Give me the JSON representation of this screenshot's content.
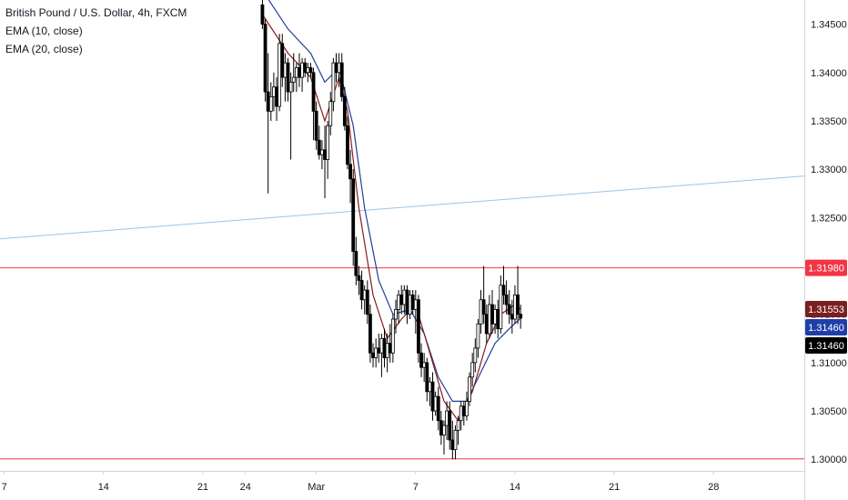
{
  "legend": {
    "title": "British Pound / U.S. Dollar, 4h, FXCM",
    "ema10": "EMA (10, close)",
    "ema20": "EMA (20, close)"
  },
  "colors": {
    "up": "#ffffff",
    "down": "#000000",
    "wick": "#000000",
    "ema10": "#8b1a1a",
    "ema20": "#1f3f9a",
    "trendline": "#9ec3ea",
    "hline": "#f23645",
    "tag_red": "#f23645",
    "tag_dark_red": "#7a1f1f",
    "tag_blue": "#1e3fa8",
    "tag_black": "#000000"
  },
  "chart_data": {
    "type": "candlestick",
    "ylim": [
      1.2988,
      1.3475
    ],
    "y_ticks": [
      "1.34500",
      "1.34000",
      "1.33500",
      "1.33000",
      "1.32500",
      "1.32000",
      "1.31500",
      "1.31000",
      "1.30500",
      "1.30000"
    ],
    "y_tick_values": [
      1.345,
      1.34,
      1.335,
      1.33,
      1.325,
      1.32,
      1.315,
      1.31,
      1.305,
      1.3
    ],
    "x_ticks": [
      "7",
      "14",
      "21",
      "24",
      "Mar",
      "7",
      "14",
      "21",
      "28"
    ],
    "x_tick_values": [
      7,
      14,
      21,
      24,
      29,
      36,
      43,
      50,
      57
    ],
    "x_range": [
      6.7,
      63.4
    ],
    "horizontal_lines": [
      {
        "value": 1.3198,
        "label": "1.31980"
      },
      {
        "value": 1.30005,
        "label": "1.30005"
      }
    ],
    "trendline": {
      "x1": 6.7,
      "y1": 1.3228,
      "x2": 63.4,
      "y2": 1.3293
    },
    "price_tags": [
      {
        "value": 1.3198,
        "label": "1.31980",
        "color_key": "tag_red"
      },
      {
        "value": 1.31553,
        "label": "1.31553",
        "color_key": "tag_dark_red"
      },
      {
        "value": 1.3146,
        "label": "1.31460",
        "color_key": "tag_blue"
      },
      {
        "value": 1.3146,
        "label": "1.31460",
        "color_key": "tag_black"
      }
    ],
    "candles": [
      [
        25.2,
        1.347,
        1.348,
        1.3445,
        1.345
      ],
      [
        25.4,
        1.345,
        1.3455,
        1.337,
        1.338
      ],
      [
        25.6,
        1.338,
        1.342,
        1.3275,
        1.336
      ],
      [
        25.8,
        1.336,
        1.339,
        1.335,
        1.3375
      ],
      [
        26.0,
        1.3375,
        1.34,
        1.336,
        1.3385
      ],
      [
        26.2,
        1.3385,
        1.3395,
        1.335,
        1.3365
      ],
      [
        26.4,
        1.3365,
        1.344,
        1.336,
        1.343
      ],
      [
        26.6,
        1.343,
        1.344,
        1.3385,
        1.3395
      ],
      [
        26.8,
        1.3395,
        1.342,
        1.337,
        1.341
      ],
      [
        27.0,
        1.341,
        1.3415,
        1.337,
        1.338
      ],
      [
        27.2,
        1.338,
        1.34,
        1.331,
        1.339
      ],
      [
        27.4,
        1.339,
        1.342,
        1.338,
        1.3395
      ],
      [
        27.6,
        1.3395,
        1.341,
        1.338,
        1.3405
      ],
      [
        27.8,
        1.3405,
        1.342,
        1.3385,
        1.3395
      ],
      [
        28.0,
        1.3395,
        1.3415,
        1.338,
        1.341
      ],
      [
        28.2,
        1.341,
        1.3415,
        1.3395,
        1.34
      ],
      [
        28.4,
        1.34,
        1.341,
        1.339,
        1.3405
      ],
      [
        28.6,
        1.3405,
        1.341,
        1.3395,
        1.34
      ],
      [
        28.8,
        1.34,
        1.3405,
        1.333,
        1.336
      ],
      [
        29.0,
        1.336,
        1.337,
        1.332,
        1.333
      ],
      [
        29.2,
        1.333,
        1.3345,
        1.331,
        1.3315
      ],
      [
        29.4,
        1.3315,
        1.333,
        1.33,
        1.332
      ],
      [
        29.6,
        1.332,
        1.3345,
        1.327,
        1.331
      ],
      [
        29.8,
        1.331,
        1.335,
        1.329,
        1.3345
      ],
      [
        30.0,
        1.3345,
        1.338,
        1.3335,
        1.337
      ],
      [
        30.2,
        1.337,
        1.3415,
        1.336,
        1.341
      ],
      [
        30.4,
        1.341,
        1.342,
        1.339,
        1.34
      ],
      [
        30.6,
        1.34,
        1.342,
        1.3385,
        1.341
      ],
      [
        30.8,
        1.341,
        1.342,
        1.337,
        1.3375
      ],
      [
        31.0,
        1.3375,
        1.3385,
        1.334,
        1.3345
      ],
      [
        31.2,
        1.3345,
        1.3355,
        1.33,
        1.3305
      ],
      [
        31.4,
        1.3305,
        1.332,
        1.3265,
        1.329
      ],
      [
        31.6,
        1.329,
        1.33,
        1.32,
        1.3215
      ],
      [
        31.8,
        1.3215,
        1.323,
        1.318,
        1.319
      ],
      [
        32.0,
        1.319,
        1.32,
        1.317,
        1.3185
      ],
      [
        32.2,
        1.3185,
        1.3195,
        1.3155,
        1.3165
      ],
      [
        32.4,
        1.3165,
        1.318,
        1.315,
        1.3175
      ],
      [
        32.6,
        1.3175,
        1.3185,
        1.314,
        1.315
      ],
      [
        32.8,
        1.315,
        1.316,
        1.31,
        1.311
      ],
      [
        33.0,
        1.311,
        1.312,
        1.3095,
        1.3105
      ],
      [
        33.2,
        1.3105,
        1.3125,
        1.3095,
        1.3115
      ],
      [
        33.4,
        1.3115,
        1.313,
        1.31,
        1.311
      ],
      [
        33.6,
        1.311,
        1.313,
        1.3085,
        1.3125
      ],
      [
        33.8,
        1.3125,
        1.3135,
        1.3095,
        1.3105
      ],
      [
        34.0,
        1.3105,
        1.313,
        1.309,
        1.312
      ],
      [
        34.2,
        1.312,
        1.314,
        1.31,
        1.311
      ],
      [
        34.4,
        1.311,
        1.315,
        1.31,
        1.3145
      ],
      [
        34.6,
        1.3145,
        1.3165,
        1.313,
        1.3155
      ],
      [
        34.8,
        1.3155,
        1.3175,
        1.314,
        1.317
      ],
      [
        35.0,
        1.317,
        1.318,
        1.315,
        1.316
      ],
      [
        35.2,
        1.316,
        1.318,
        1.315,
        1.3175
      ],
      [
        35.4,
        1.3175,
        1.318,
        1.314,
        1.315
      ],
      [
        35.6,
        1.315,
        1.3175,
        1.3145,
        1.317
      ],
      [
        35.8,
        1.317,
        1.3175,
        1.315,
        1.3155
      ],
      [
        36.0,
        1.3155,
        1.3175,
        1.313,
        1.3165
      ],
      [
        36.2,
        1.3165,
        1.317,
        1.31,
        1.311
      ],
      [
        36.4,
        1.311,
        1.312,
        1.3085,
        1.3095
      ],
      [
        36.6,
        1.3095,
        1.311,
        1.308,
        1.31
      ],
      [
        36.8,
        1.31,
        1.3105,
        1.306,
        1.307
      ],
      [
        37.0,
        1.307,
        1.3085,
        1.3055,
        1.308
      ],
      [
        37.2,
        1.308,
        1.309,
        1.304,
        1.305
      ],
      [
        37.4,
        1.305,
        1.307,
        1.3045,
        1.3065
      ],
      [
        37.6,
        1.3065,
        1.3075,
        1.303,
        1.304
      ],
      [
        37.8,
        1.304,
        1.305,
        1.3015,
        1.3025
      ],
      [
        38.0,
        1.3025,
        1.304,
        1.3005,
        1.3035
      ],
      [
        38.2,
        1.3035,
        1.306,
        1.302,
        1.305
      ],
      [
        38.4,
        1.305,
        1.306,
        1.301,
        1.302
      ],
      [
        38.6,
        1.302,
        1.304,
        1.3,
        1.301
      ],
      [
        38.8,
        1.301,
        1.3035,
        1.3,
        1.303
      ],
      [
        39.0,
        1.303,
        1.3045,
        1.3015,
        1.304
      ],
      [
        39.2,
        1.304,
        1.306,
        1.303,
        1.3055
      ],
      [
        39.4,
        1.3055,
        1.306,
        1.3035,
        1.3045
      ],
      [
        39.6,
        1.3045,
        1.307,
        1.304,
        1.306
      ],
      [
        39.8,
        1.306,
        1.309,
        1.3055,
        1.3085
      ],
      [
        40.0,
        1.3085,
        1.311,
        1.3075,
        1.31
      ],
      [
        40.2,
        1.31,
        1.3125,
        1.309,
        1.3115
      ],
      [
        40.4,
        1.3115,
        1.3145,
        1.3105,
        1.314
      ],
      [
        40.6,
        1.314,
        1.3175,
        1.313,
        1.3165
      ],
      [
        40.8,
        1.3165,
        1.32,
        1.314,
        1.315
      ],
      [
        41.0,
        1.315,
        1.316,
        1.312,
        1.313
      ],
      [
        41.2,
        1.313,
        1.317,
        1.3125,
        1.316
      ],
      [
        41.4,
        1.316,
        1.3175,
        1.313,
        1.314
      ],
      [
        41.6,
        1.314,
        1.316,
        1.313,
        1.3155
      ],
      [
        41.8,
        1.3155,
        1.3165,
        1.3125,
        1.3135
      ],
      [
        42.0,
        1.3135,
        1.319,
        1.313,
        1.318
      ],
      [
        42.2,
        1.318,
        1.32,
        1.316,
        1.317
      ],
      [
        42.4,
        1.317,
        1.3185,
        1.315,
        1.316
      ],
      [
        42.6,
        1.316,
        1.3175,
        1.314,
        1.315
      ],
      [
        42.8,
        1.315,
        1.3165,
        1.313,
        1.3145
      ],
      [
        43.0,
        1.3145,
        1.318,
        1.314,
        1.317
      ],
      [
        43.2,
        1.317,
        1.32,
        1.314,
        1.315
      ],
      [
        43.4,
        1.315,
        1.316,
        1.3135,
        1.3146
      ]
    ],
    "ema10": [
      [
        25.2,
        1.346
      ],
      [
        27.0,
        1.342
      ],
      [
        28.6,
        1.3395
      ],
      [
        29.6,
        1.335
      ],
      [
        30.6,
        1.3395
      ],
      [
        31.2,
        1.336
      ],
      [
        32.0,
        1.326
      ],
      [
        33.0,
        1.317
      ],
      [
        34.0,
        1.3125
      ],
      [
        35.0,
        1.3145
      ],
      [
        36.0,
        1.316
      ],
      [
        37.0,
        1.311
      ],
      [
        38.0,
        1.306
      ],
      [
        39.0,
        1.304
      ],
      [
        40.0,
        1.307
      ],
      [
        41.0,
        1.312
      ],
      [
        42.0,
        1.315
      ],
      [
        43.0,
        1.316
      ],
      [
        43.4,
        1.31553
      ]
    ],
    "ema20": [
      [
        25.2,
        1.3485
      ],
      [
        27.0,
        1.3445
      ],
      [
        28.6,
        1.342
      ],
      [
        29.6,
        1.339
      ],
      [
        30.6,
        1.3405
      ],
      [
        31.6,
        1.3345
      ],
      [
        32.4,
        1.326
      ],
      [
        33.4,
        1.3185
      ],
      [
        34.4,
        1.315
      ],
      [
        35.6,
        1.3155
      ],
      [
        36.6,
        1.313
      ],
      [
        37.6,
        1.3085
      ],
      [
        38.6,
        1.306
      ],
      [
        39.6,
        1.306
      ],
      [
        40.6,
        1.309
      ],
      [
        41.6,
        1.312
      ],
      [
        42.6,
        1.3135
      ],
      [
        43.4,
        1.3146
      ]
    ]
  }
}
